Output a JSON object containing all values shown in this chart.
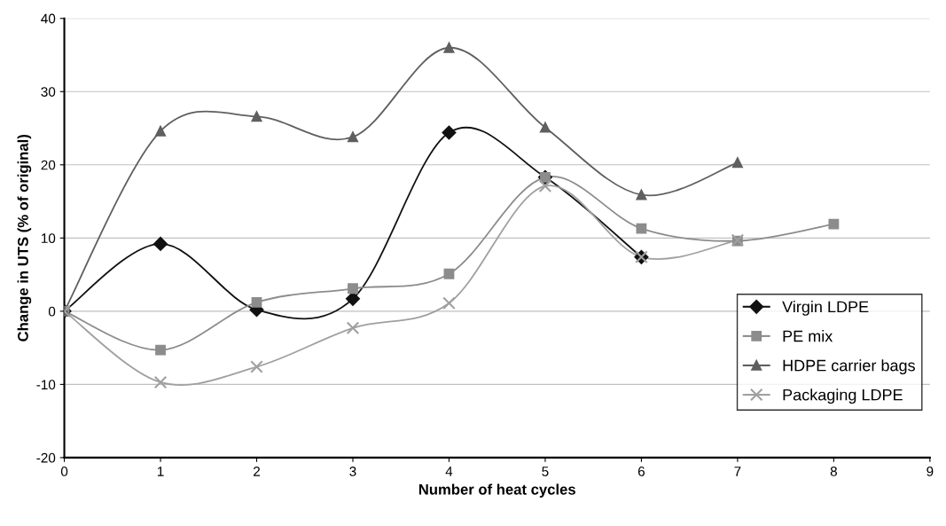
{
  "chart_data": {
    "type": "line",
    "xlabel": "Number of heat cycles",
    "ylabel": "Change in UTS (% of original)",
    "xlim": [
      0,
      9
    ],
    "xticks": [
      0,
      1,
      2,
      3,
      4,
      5,
      6,
      7,
      8,
      9
    ],
    "ylim": [
      -20,
      40
    ],
    "yticks": [
      -20,
      -10,
      0,
      10,
      20,
      30,
      40
    ],
    "grid": "y",
    "legend": "bottom right",
    "line_style": "solid",
    "series": [
      {
        "name": "Virgin LDPE",
        "color": "#111111",
        "marker": "diamond",
        "x": [
          0,
          1,
          2,
          3,
          4,
          5,
          6
        ],
        "values": [
          0,
          9.2,
          0.2,
          1.7,
          24.4,
          18.3,
          7.4
        ]
      },
      {
        "name": "PE mix",
        "color": "#8c8c8c",
        "marker": "square",
        "x": [
          0,
          1,
          2,
          3,
          4,
          5,
          6,
          7,
          8
        ],
        "values": [
          0,
          -5.3,
          1.2,
          3.1,
          5.1,
          18.3,
          11.3,
          9.6,
          11.9
        ]
      },
      {
        "name": "HDPE carrier bags",
        "color": "#5f5f5f",
        "marker": "triangle",
        "x": [
          0,
          1,
          2,
          3,
          4,
          5,
          6,
          7
        ],
        "values": [
          0,
          24.6,
          26.6,
          23.8,
          36.0,
          25.1,
          15.9,
          20.3
        ]
      },
      {
        "name": "Packaging LDPE",
        "color": "#a0a0a0",
        "marker": "cross",
        "x": [
          0,
          1,
          2,
          3,
          4,
          5,
          6,
          7
        ],
        "values": [
          0,
          -9.7,
          -7.6,
          -2.3,
          1.1,
          17.1,
          7.4,
          9.7
        ]
      }
    ]
  }
}
